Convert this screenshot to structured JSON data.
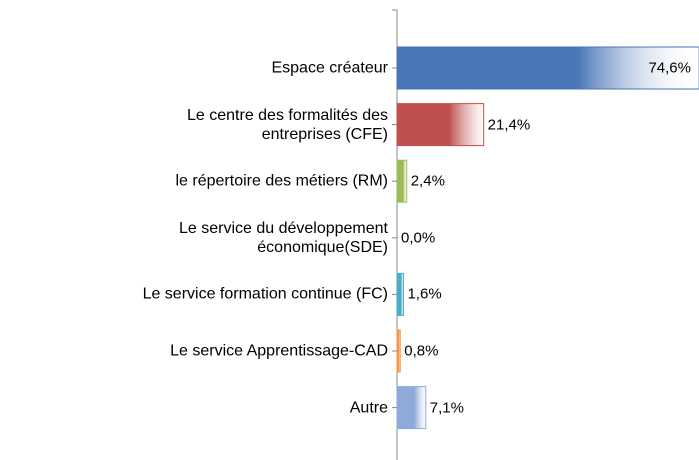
{
  "chart_data": {
    "type": "bar",
    "orientation": "horizontal",
    "categories": [
      "Espace créateur",
      "Le centre des formalités des\nentreprises (CFE)",
      "le répertoire des métiers (RM)",
      "Le service du développement\néconomique(SDE)",
      "Le service formation continue (FC)",
      "Le service Apprentissage-CAD",
      "Autre"
    ],
    "values": [
      74.6,
      21.4,
      2.4,
      0.0,
      1.6,
      0.8,
      7.1
    ],
    "value_labels": [
      "74,6%",
      "21,4%",
      "2,4%",
      "0,0%",
      "1,6%",
      "0,8%",
      "7,1%"
    ],
    "colors": [
      "#4a76b8",
      "#c0504d",
      "#9bbb59",
      "#8064a2",
      "#4bacc6",
      "#f79646",
      "#8eaad8"
    ]
  }
}
